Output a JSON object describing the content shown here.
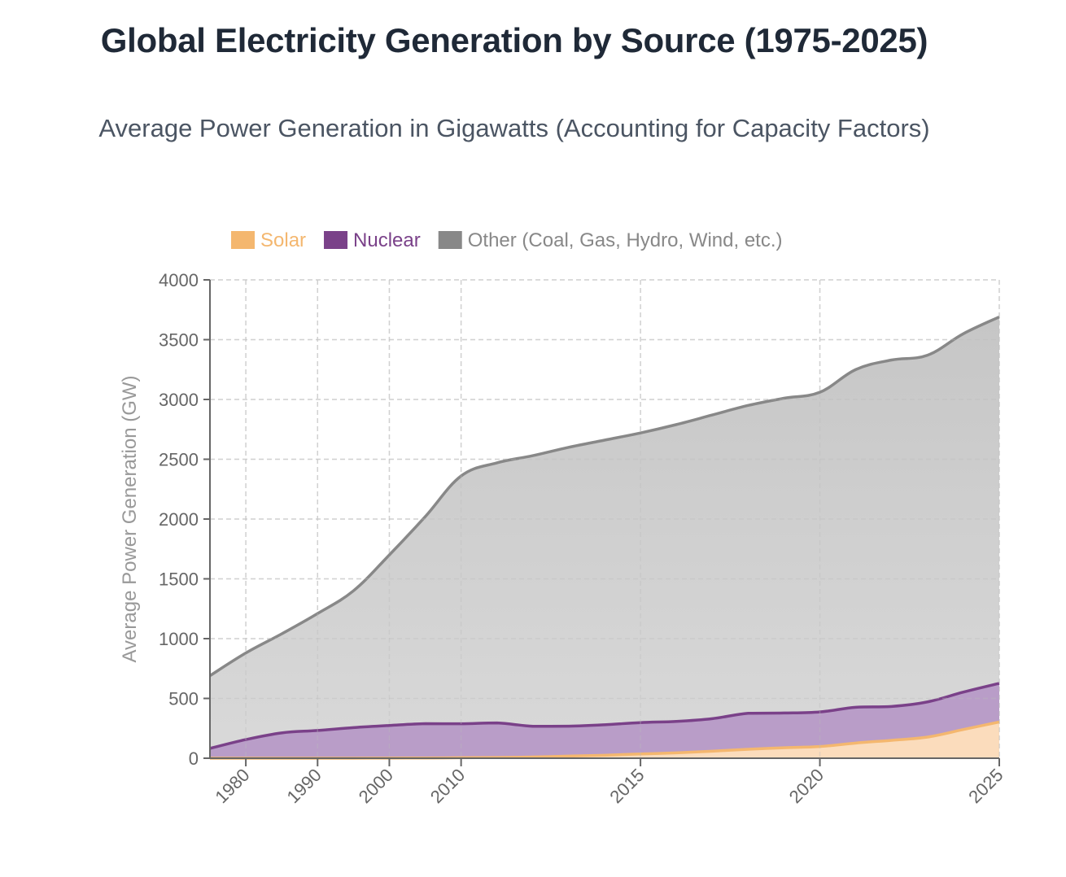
{
  "title": "Global Electricity Generation by Source (1975-2025)",
  "subtitle": "Average Power Generation in Gigawatts (Accounting for Capacity Factors)",
  "chart_data": {
    "type": "area",
    "stacked": true,
    "title": "Global Electricity Generation by Source (1975-2025)",
    "subtitle": "Average Power Generation in Gigawatts (Accounting for Capacity Factors)",
    "xlabel": "",
    "ylabel": "Average Power Generation (GW)",
    "ylim": [
      0,
      4000
    ],
    "yticks": [
      0,
      500,
      1000,
      1500,
      2000,
      2500,
      3000,
      3500,
      4000
    ],
    "x": [
      1975,
      1980,
      1985,
      1990,
      1995,
      2000,
      2005,
      2010,
      2011,
      2012,
      2013,
      2014,
      2015,
      2016,
      2017,
      2018,
      2019,
      2020,
      2021,
      2022,
      2023,
      2024,
      2025
    ],
    "xticks": [
      1980,
      1990,
      2000,
      2010,
      2015,
      2020,
      2025
    ],
    "grid": true,
    "legend_position": "top-center",
    "series": [
      {
        "name": "Solar",
        "color": "#f4b76f",
        "fill": "#fbdcbc",
        "values": [
          0,
          0,
          0,
          0,
          0,
          1,
          2,
          4,
          6,
          10,
          18,
          25,
          36,
          45,
          59,
          75,
          88,
          98,
          127,
          150,
          177,
          240,
          303
        ]
      },
      {
        "name": "Nuclear",
        "color": "#7a4189",
        "fill": "#b99dc8",
        "values": [
          82,
          156,
          212,
          232,
          256,
          273,
          287,
          284,
          289,
          257,
          250,
          255,
          262,
          263,
          272,
          301,
          290,
          289,
          299,
          283,
          294,
          313,
          323
        ]
      },
      {
        "name": "Other (Coal, Gas, Hydro, Wind, etc.)",
        "color": "#888888",
        "fill": "#cccccc",
        "values": [
          608,
          724,
          828,
          978,
          1144,
          1426,
          1731,
          2072,
          2175,
          2263,
          2332,
          2380,
          2422,
          2482,
          2539,
          2574,
          2632,
          2673,
          2824,
          2897,
          2899,
          2997,
          3064
        ]
      }
    ]
  }
}
